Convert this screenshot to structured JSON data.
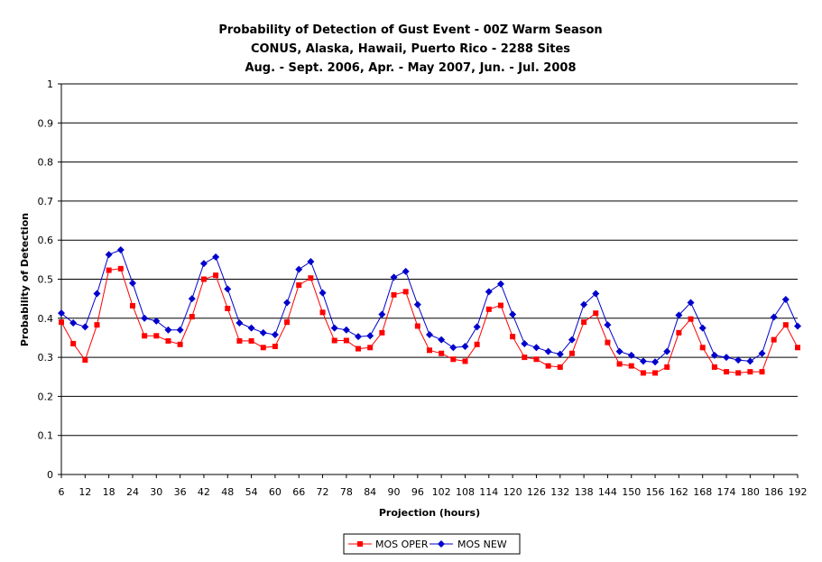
{
  "chart_data": {
    "type": "line",
    "title": [
      "Probability of Detection of Gust Event - 00Z Warm Season",
      "CONUS, Alaska, Hawaii, Puerto Rico - 2288 Sites",
      "Aug. - Sept. 2006, Apr. - May 2007, Jun. - Jul. 2008"
    ],
    "xlabel": "Projection (hours)",
    "ylabel": "Probability of Detection",
    "ylim": [
      0,
      1
    ],
    "yticks": [
      "0",
      "0.1",
      "0.2",
      "0.3",
      "0.4",
      "0.5",
      "0.6",
      "0.7",
      "0.8",
      "0.9",
      "1"
    ],
    "xlim": [
      6,
      192
    ],
    "xticks": [
      "6",
      "12",
      "18",
      "24",
      "30",
      "36",
      "42",
      "48",
      "54",
      "60",
      "66",
      "72",
      "78",
      "84",
      "90",
      "96",
      "102",
      "108",
      "114",
      "120",
      "126",
      "132",
      "138",
      "144",
      "150",
      "156",
      "162",
      "168",
      "174",
      "180",
      "186",
      "192"
    ],
    "grid": "horizontal",
    "legend_position": "bottom",
    "x": [
      6,
      9,
      12,
      15,
      18,
      21,
      24,
      27,
      30,
      33,
      36,
      39,
      42,
      45,
      48,
      51,
      54,
      57,
      60,
      63,
      66,
      69,
      72,
      75,
      78,
      81,
      84,
      87,
      90,
      93,
      96,
      99,
      102,
      105,
      108,
      111,
      114,
      117,
      120,
      123,
      126,
      129,
      132,
      135,
      138,
      141,
      144,
      147,
      150,
      153,
      156,
      159,
      162,
      165,
      168,
      171,
      174,
      177,
      180,
      183,
      186,
      189,
      192
    ],
    "series": [
      {
        "name": "MOS OPER",
        "color": "#ff0000",
        "marker": "square",
        "values": [
          0.39,
          0.335,
          0.293,
          0.383,
          0.523,
          0.527,
          0.432,
          0.355,
          0.355,
          0.342,
          0.333,
          0.404,
          0.5,
          0.51,
          0.425,
          0.342,
          0.342,
          0.325,
          0.328,
          0.39,
          0.485,
          0.503,
          0.415,
          0.343,
          0.343,
          0.322,
          0.325,
          0.363,
          0.46,
          0.468,
          0.38,
          0.318,
          0.31,
          0.295,
          0.29,
          0.333,
          0.423,
          0.433,
          0.353,
          0.3,
          0.295,
          0.278,
          0.275,
          0.31,
          0.39,
          0.413,
          0.338,
          0.283,
          0.278,
          0.26,
          0.26,
          0.275,
          0.363,
          0.398,
          0.325,
          0.275,
          0.263,
          0.26,
          0.263,
          0.263,
          0.345,
          0.383,
          0.325
        ]
      },
      {
        "name": "MOS NEW",
        "color": "#0000cc",
        "marker": "diamond",
        "values": [
          0.413,
          0.388,
          0.378,
          0.463,
          0.563,
          0.575,
          0.49,
          0.4,
          0.393,
          0.37,
          0.37,
          0.45,
          0.54,
          0.557,
          0.475,
          0.388,
          0.375,
          0.363,
          0.358,
          0.44,
          0.525,
          0.545,
          0.465,
          0.375,
          0.37,
          0.353,
          0.355,
          0.41,
          0.505,
          0.52,
          0.435,
          0.358,
          0.345,
          0.325,
          0.328,
          0.378,
          0.468,
          0.488,
          0.41,
          0.335,
          0.325,
          0.315,
          0.308,
          0.345,
          0.435,
          0.463,
          0.383,
          0.315,
          0.305,
          0.29,
          0.288,
          0.315,
          0.408,
          0.44,
          0.375,
          0.305,
          0.3,
          0.293,
          0.29,
          0.31,
          0.403,
          0.448,
          0.38
        ]
      }
    ]
  }
}
